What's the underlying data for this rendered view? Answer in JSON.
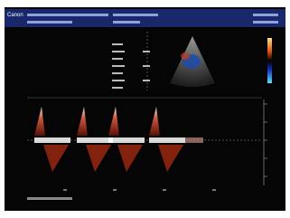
{
  "header": {
    "brand": "Canon"
  }
}
